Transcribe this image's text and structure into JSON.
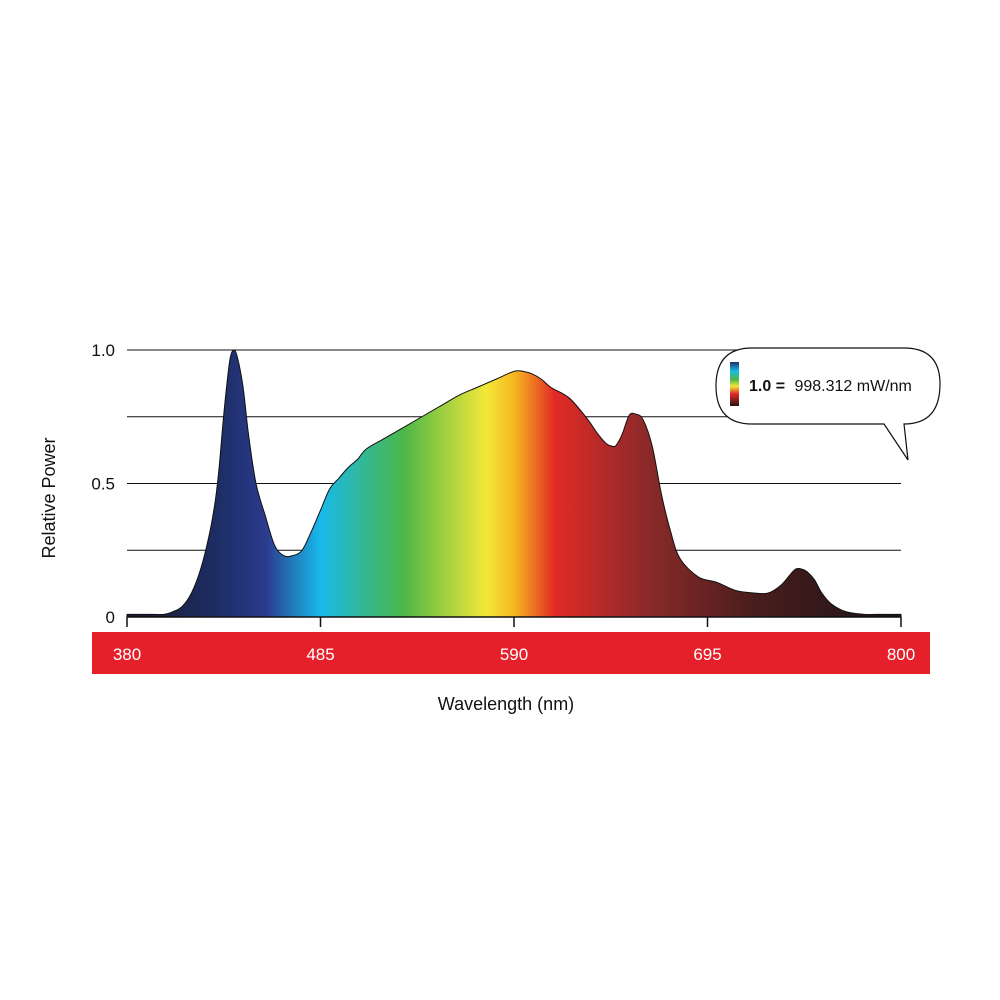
{
  "chart_data": {
    "type": "area",
    "title": "",
    "xlabel": "Wavelength (nm)",
    "ylabel": "Relative Power",
    "xlim": [
      380,
      800
    ],
    "ylim": [
      0,
      1.0
    ],
    "xticks": [
      "380",
      "485",
      "590",
      "695",
      "800"
    ],
    "yticks": [
      {
        "value": 1.0,
        "label": "1.0"
      },
      {
        "value": 0.75,
        "label": ""
      },
      {
        "value": 0.5,
        "label": "0.5"
      },
      {
        "value": 0.25,
        "label": ""
      },
      {
        "value": 0,
        "label": "0"
      }
    ],
    "grid": true,
    "x": [
      380,
      390,
      400,
      405,
      410,
      415,
      420,
      425,
      428,
      430,
      432,
      434,
      436,
      438,
      440,
      443,
      446,
      450,
      455,
      460,
      465,
      470,
      475,
      480,
      485,
      490,
      495,
      500,
      505,
      510,
      520,
      530,
      540,
      550,
      560,
      570,
      580,
      590,
      595,
      600,
      605,
      610,
      620,
      630,
      635,
      640,
      643,
      645,
      647,
      649,
      651,
      653,
      656,
      660,
      665,
      670,
      675,
      680,
      690,
      700,
      710,
      720,
      728,
      735,
      740,
      743,
      746,
      749,
      753,
      757,
      762,
      770,
      780,
      790,
      800
    ],
    "values": [
      0.01,
      0.01,
      0.01,
      0.02,
      0.04,
      0.09,
      0.18,
      0.32,
      0.44,
      0.56,
      0.72,
      0.86,
      0.97,
      1.0,
      0.97,
      0.86,
      0.68,
      0.5,
      0.38,
      0.27,
      0.23,
      0.23,
      0.25,
      0.32,
      0.4,
      0.48,
      0.52,
      0.56,
      0.59,
      0.63,
      0.67,
      0.71,
      0.75,
      0.79,
      0.83,
      0.86,
      0.89,
      0.92,
      0.92,
      0.91,
      0.89,
      0.86,
      0.82,
      0.74,
      0.69,
      0.65,
      0.64,
      0.64,
      0.66,
      0.69,
      0.73,
      0.76,
      0.76,
      0.74,
      0.64,
      0.46,
      0.32,
      0.22,
      0.15,
      0.13,
      0.1,
      0.09,
      0.09,
      0.12,
      0.16,
      0.18,
      0.18,
      0.17,
      0.14,
      0.09,
      0.05,
      0.02,
      0.01,
      0.01,
      0.01
    ],
    "legend": {
      "value_label": "1.0 =",
      "value_text": "998.312 mW/nm",
      "placement": "top-right"
    }
  },
  "colors": {
    "axis_band": "#e5202a",
    "gridline": "#111111",
    "outline": "#111111",
    "spectrum_stops": [
      {
        "nm": 380,
        "color": "#1a1a2e"
      },
      {
        "nm": 430,
        "color": "#1d2e66"
      },
      {
        "nm": 455,
        "color": "#2b3a8c"
      },
      {
        "nm": 485,
        "color": "#18b9ea"
      },
      {
        "nm": 530,
        "color": "#4cb748"
      },
      {
        "nm": 575,
        "color": "#f3e838"
      },
      {
        "nm": 590,
        "color": "#f6b81f"
      },
      {
        "nm": 612,
        "color": "#e22a26"
      },
      {
        "nm": 660,
        "color": "#8e2a2a"
      },
      {
        "nm": 720,
        "color": "#4a1d1d"
      },
      {
        "nm": 800,
        "color": "#1a1416"
      }
    ]
  }
}
